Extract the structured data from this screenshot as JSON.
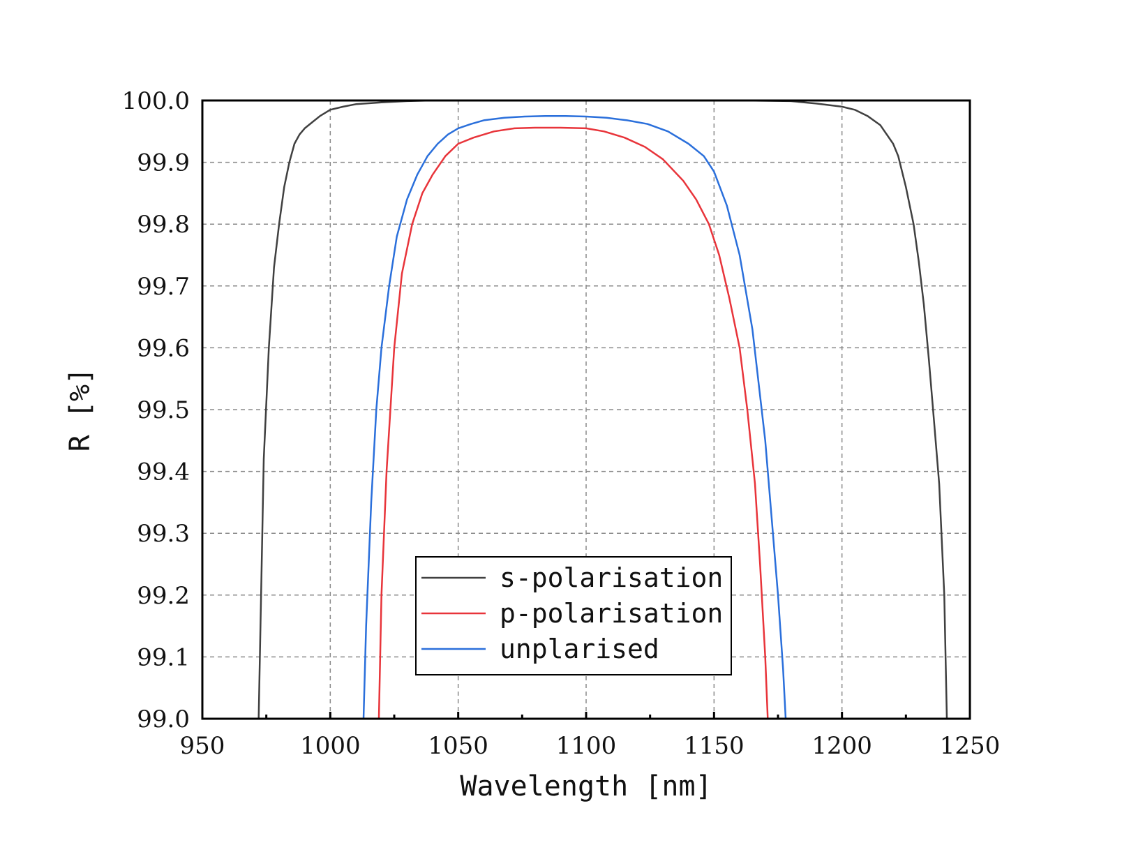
{
  "chart_data": {
    "type": "line",
    "xlabel": "Wavelength [nm]",
    "ylabel": "R [%]",
    "xlim": [
      950,
      1250
    ],
    "ylim": [
      99.0,
      100.0
    ],
    "x_ticks": [
      950,
      1000,
      1050,
      1100,
      1150,
      1200,
      1250
    ],
    "x_tick_labels": [
      "950",
      "1000",
      "1050",
      "1100",
      "1150",
      "1200",
      "1250"
    ],
    "y_ticks": [
      99.0,
      99.1,
      99.2,
      99.3,
      99.4,
      99.5,
      99.6,
      99.7,
      99.8,
      99.9,
      100.0
    ],
    "y_tick_labels": [
      "99.0",
      "99.1",
      "99.2",
      "99.3",
      "99.4",
      "99.5",
      "99.6",
      "99.7",
      "99.8",
      "99.9",
      "100.0"
    ],
    "grid": true,
    "legend_position": "bottom-center",
    "series": [
      {
        "name": "s-polarisation",
        "color": "#404040",
        "x": [
          972,
          974,
          976,
          978,
          980,
          982,
          984,
          986,
          988,
          990,
          993,
          996,
          1000,
          1005,
          1010,
          1020,
          1030,
          1040,
          1060,
          1080,
          1100,
          1120,
          1140,
          1160,
          1180,
          1190,
          1200,
          1205,
          1210,
          1215,
          1220,
          1222,
          1225,
          1228,
          1230,
          1232,
          1234,
          1236,
          1238,
          1240,
          1241
        ],
        "y": [
          99.0,
          99.42,
          99.6,
          99.73,
          99.8,
          99.86,
          99.9,
          99.93,
          99.945,
          99.955,
          99.965,
          99.975,
          99.985,
          99.99,
          99.994,
          99.997,
          99.999,
          100.0,
          100.0,
          100.0,
          100.0,
          100.0,
          100.0,
          100.0,
          99.999,
          99.995,
          99.99,
          99.985,
          99.975,
          99.96,
          99.93,
          99.91,
          99.86,
          99.8,
          99.74,
          99.67,
          99.58,
          99.48,
          99.38,
          99.2,
          99.0
        ]
      },
      {
        "name": "p-polarisation",
        "color": "#e8343a",
        "x": [
          1019,
          1020,
          1022,
          1025,
          1028,
          1032,
          1036,
          1040,
          1045,
          1050,
          1056,
          1064,
          1072,
          1080,
          1090,
          1100,
          1107,
          1115,
          1123,
          1130,
          1138,
          1143,
          1148,
          1152,
          1156,
          1160,
          1163,
          1166,
          1168,
          1170,
          1171
        ],
        "y": [
          99.0,
          99.2,
          99.4,
          99.6,
          99.72,
          99.8,
          99.85,
          99.88,
          99.91,
          99.93,
          99.94,
          99.95,
          99.955,
          99.956,
          99.956,
          99.955,
          99.95,
          99.94,
          99.925,
          99.905,
          99.87,
          99.84,
          99.8,
          99.75,
          99.68,
          99.6,
          99.5,
          99.38,
          99.25,
          99.1,
          99.0
        ]
      },
      {
        "name": "unplarised",
        "color": "#2a6fdb",
        "x": [
          1013,
          1014,
          1016,
          1018,
          1020,
          1023,
          1026,
          1030,
          1034,
          1038,
          1042,
          1046,
          1050,
          1055,
          1060,
          1068,
          1076,
          1084,
          1092,
          1100,
          1108,
          1116,
          1124,
          1132,
          1140,
          1146,
          1150,
          1155,
          1160,
          1165,
          1170,
          1173,
          1175,
          1177,
          1178
        ],
        "y": [
          99.0,
          99.15,
          99.35,
          99.5,
          99.6,
          99.7,
          99.78,
          99.84,
          99.88,
          99.91,
          99.93,
          99.945,
          99.955,
          99.962,
          99.968,
          99.972,
          99.974,
          99.975,
          99.975,
          99.974,
          99.972,
          99.968,
          99.962,
          99.95,
          99.93,
          99.91,
          99.885,
          99.83,
          99.75,
          99.63,
          99.45,
          99.3,
          99.2,
          99.08,
          99.0
        ]
      }
    ]
  }
}
